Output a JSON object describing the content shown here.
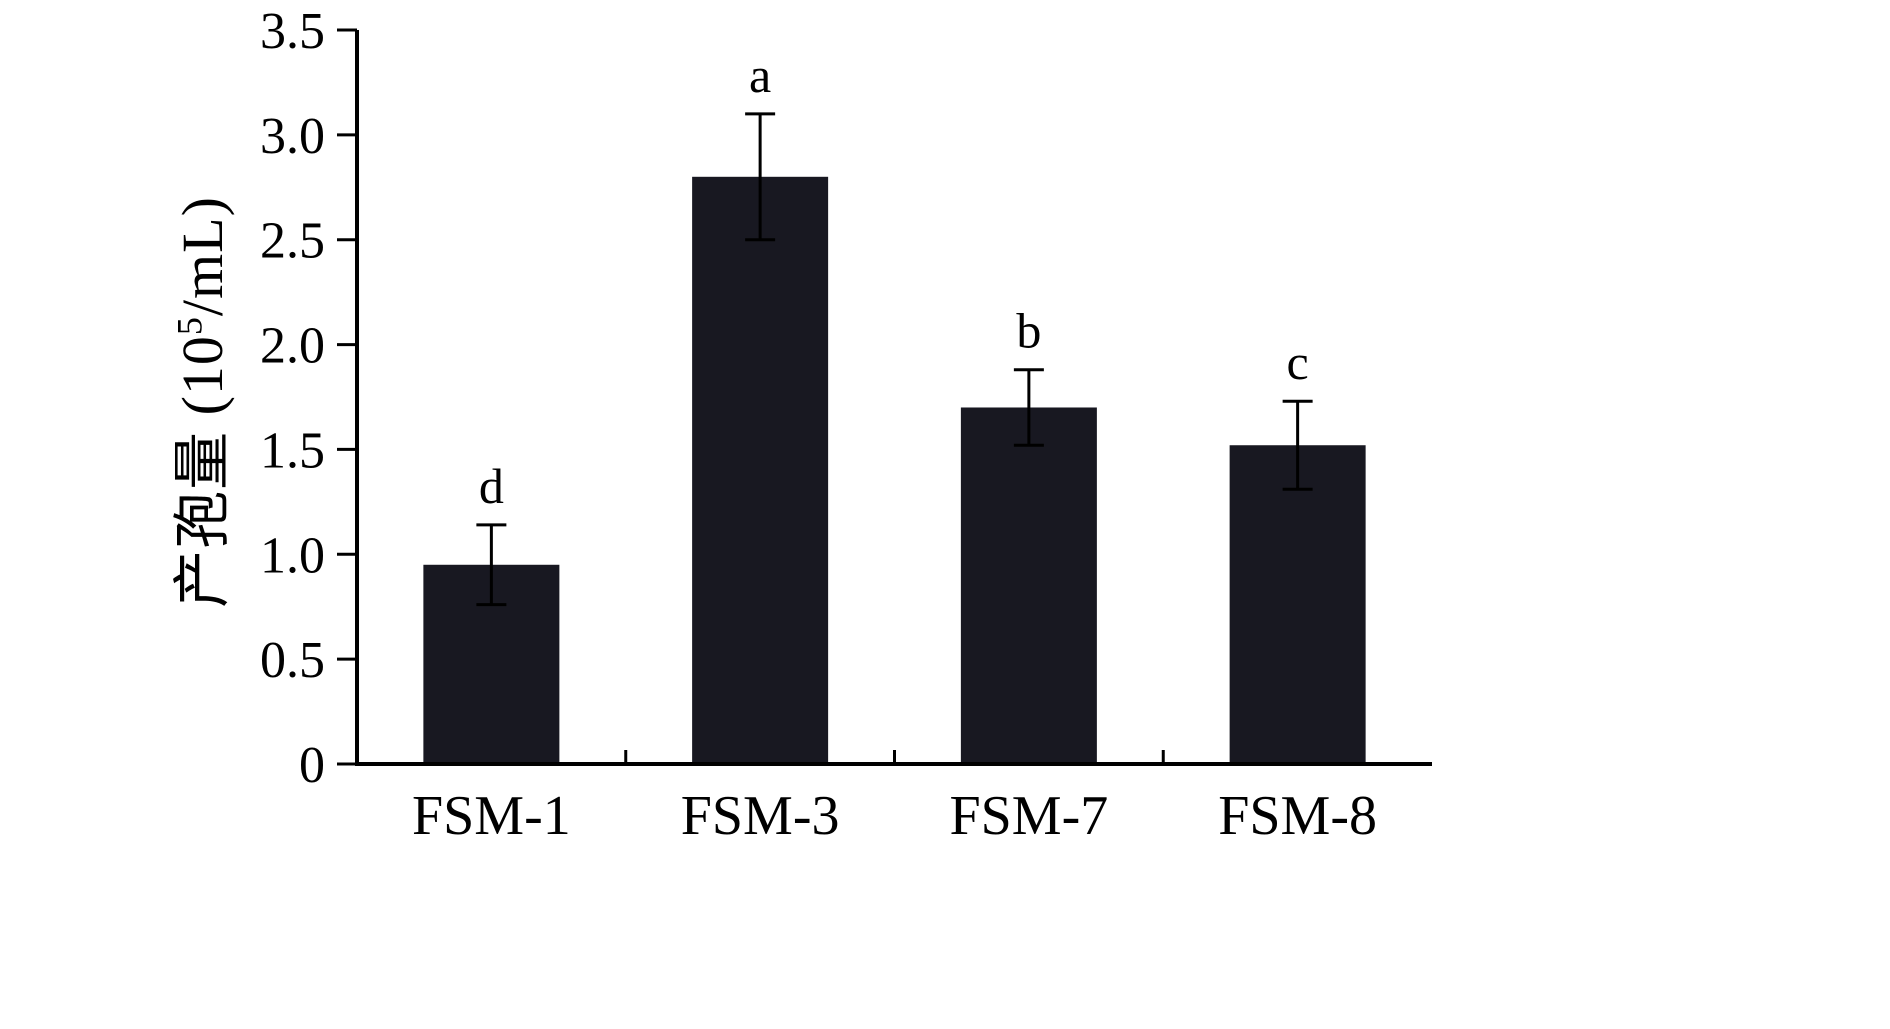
{
  "chart_data": {
    "type": "bar",
    "title": "",
    "xlabel": "",
    "ylabel": "产孢量 (10^5/mL)",
    "ylabel_parts": {
      "prefix": "产孢量 (10",
      "sup": "5",
      "suffix": "/mL)"
    },
    "categories": [
      "FSM-1",
      "FSM-3",
      "FSM-7",
      "FSM-8"
    ],
    "values": [
      0.95,
      2.8,
      1.7,
      1.52
    ],
    "errors": [
      0.19,
      0.3,
      0.18,
      0.21
    ],
    "sig_letters": [
      "d",
      "a",
      "b",
      "c"
    ],
    "ylim": [
      0,
      3.5
    ],
    "yticks": [
      0,
      0.5,
      1.0,
      1.5,
      2.0,
      2.5,
      3.0,
      3.5
    ],
    "ytick_labels": [
      "0",
      "0.5",
      "1.0",
      "1.5",
      "2.0",
      "2.5",
      "3.0",
      "3.5"
    ],
    "bar_color": "#181821",
    "axis_color": "#000000",
    "grid": false,
    "legend": "none"
  }
}
